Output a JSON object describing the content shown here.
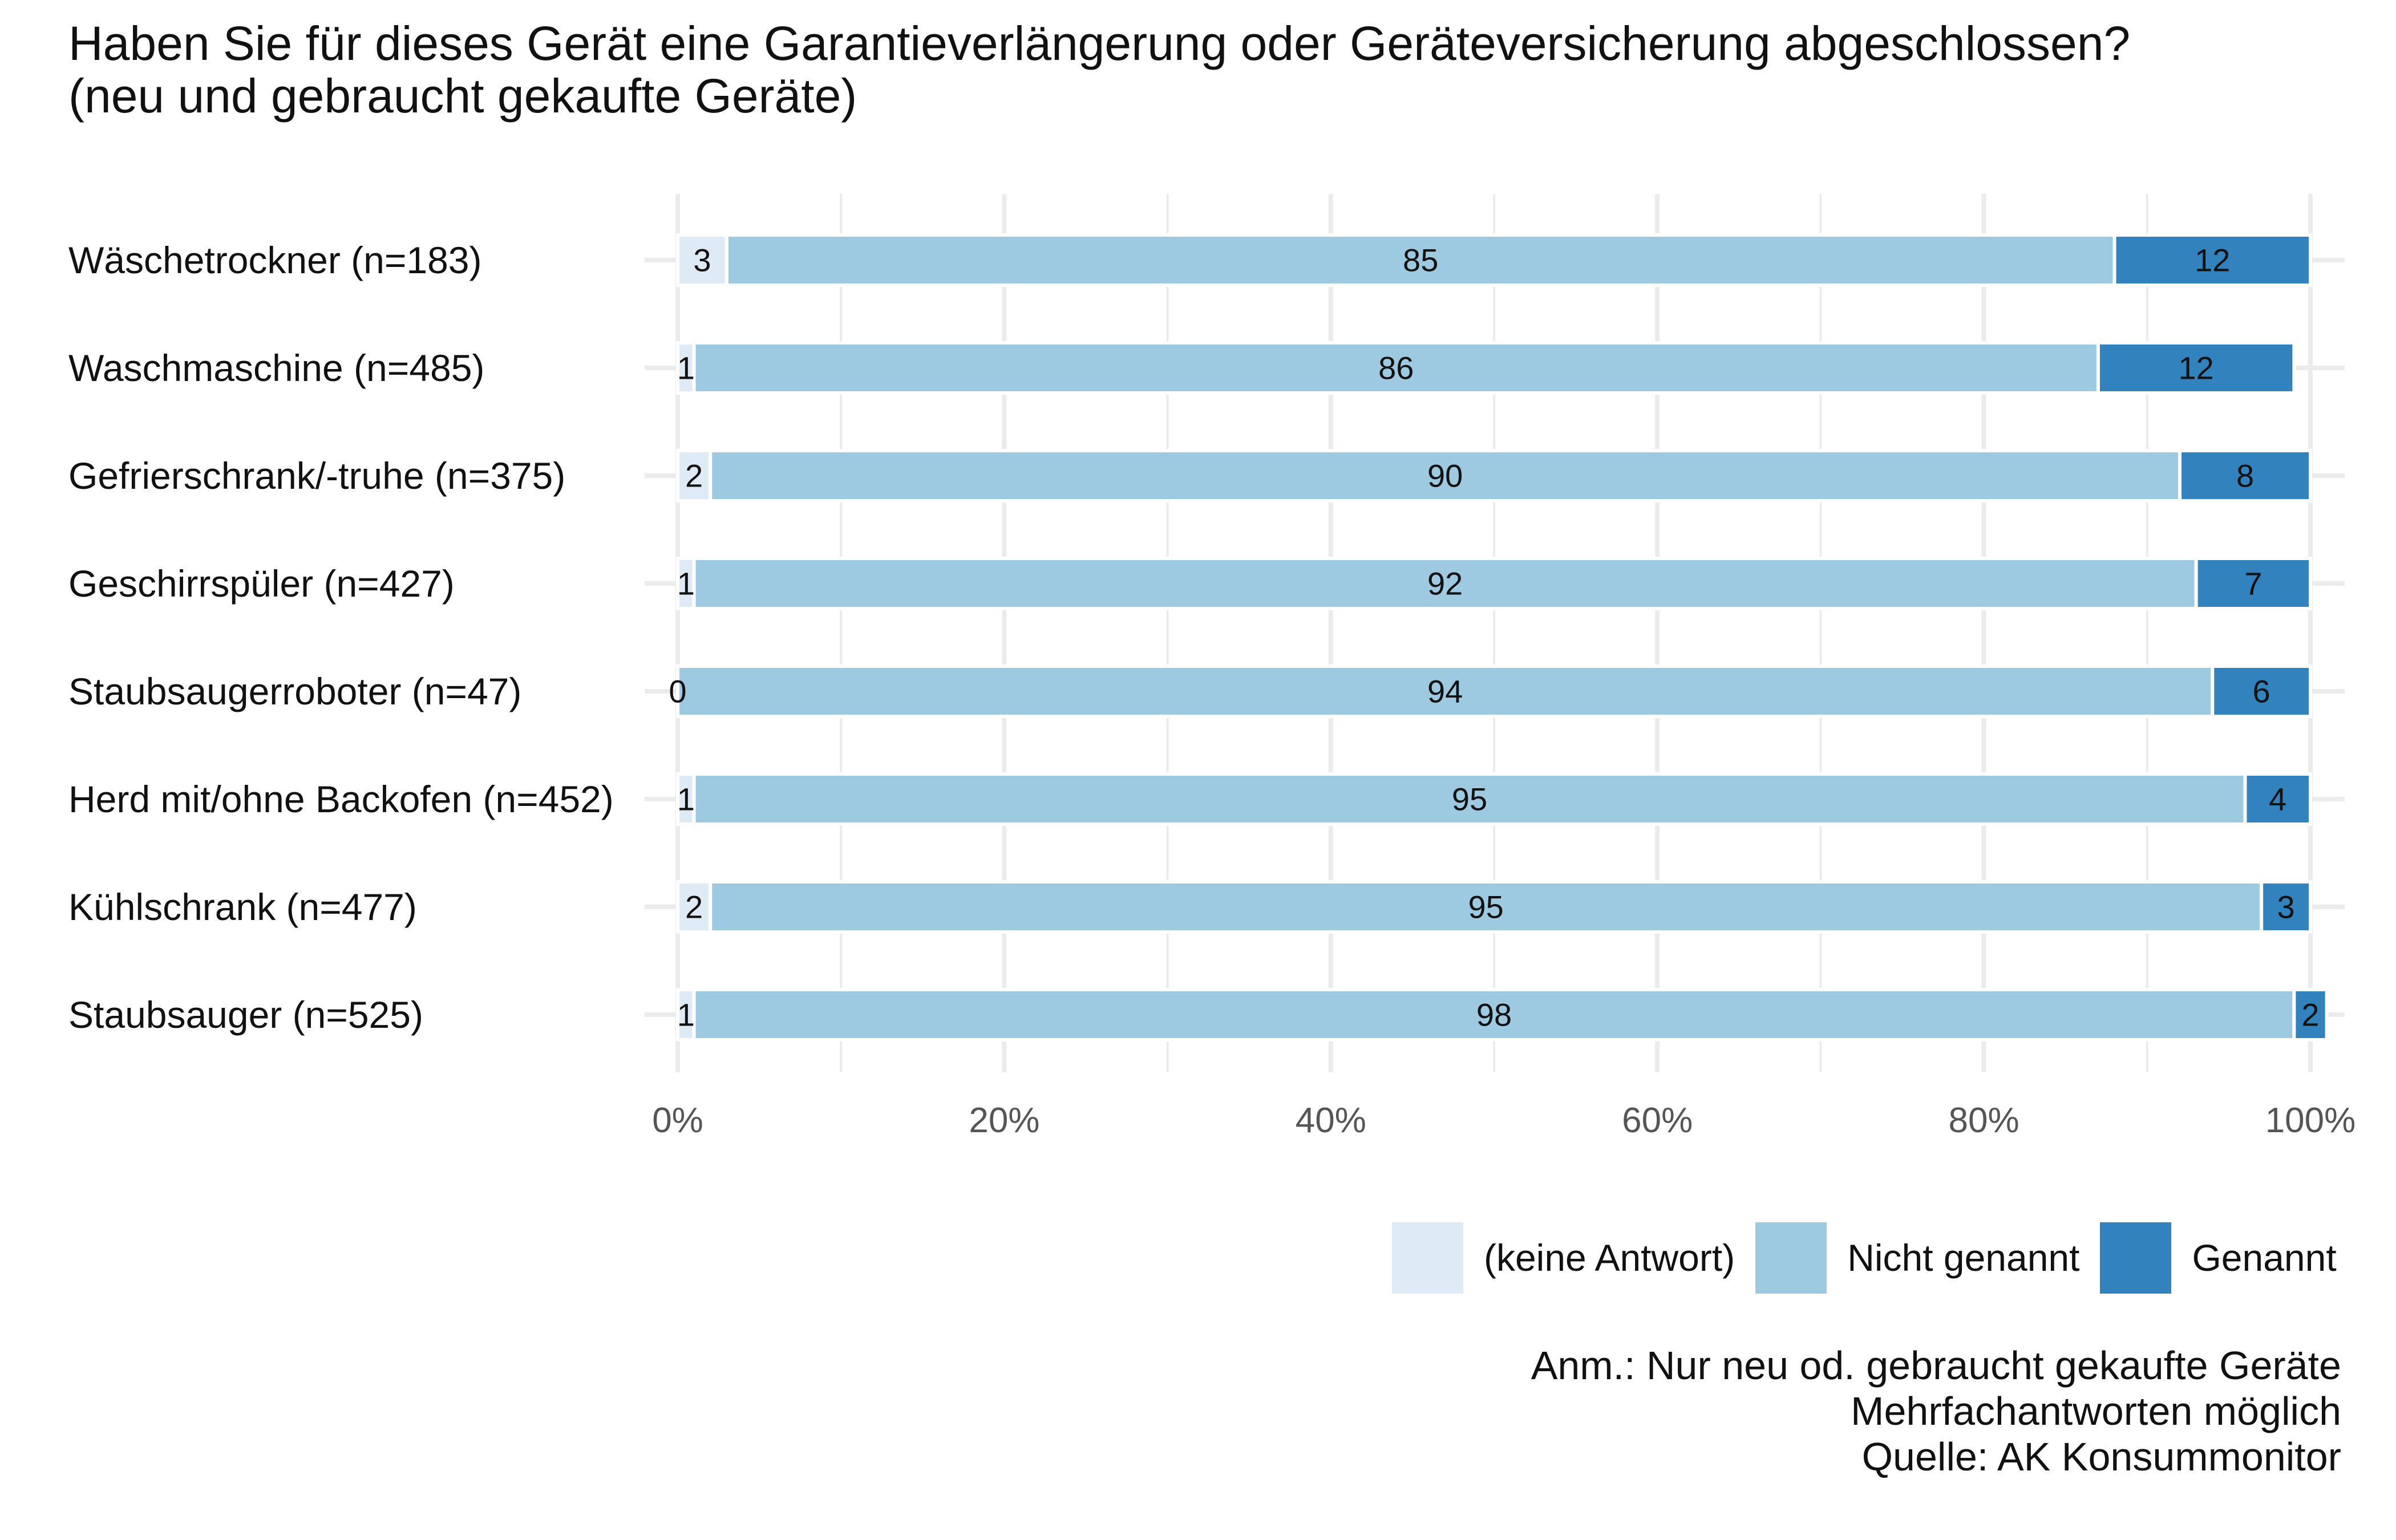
{
  "chart_data": {
    "type": "bar",
    "orientation": "horizontal",
    "stacked": true,
    "title": "Haben Sie für dieses Gerät eine Garantieverlängerung oder Geräteversicherung abgeschlossen?",
    "subtitle": "(neu und gebraucht gekaufte Geräte)",
    "categories": [
      "Wäschetrockner (n=183)",
      "Waschmaschine (n=485)",
      "Gefrierschrank/-truhe (n=375)",
      "Geschirrspüler (n=427)",
      "Staubsaugerroboter (n=47)",
      "Herd mit/ohne Backofen (n=452)",
      "Kühlschrank (n=477)",
      "Staubsauger (n=525)"
    ],
    "series": [
      {
        "name": "(keine Antwort)",
        "color": "#deebf7",
        "values": [
          3,
          1,
          2,
          1,
          0,
          1,
          2,
          1
        ]
      },
      {
        "name": "Nicht genannt",
        "color": "#9ecae1",
        "values": [
          85,
          86,
          90,
          92,
          94,
          95,
          95,
          98
        ]
      },
      {
        "name": "Genannt",
        "color": "#3182bd",
        "values": [
          12,
          12,
          8,
          7,
          6,
          4,
          3,
          2
        ]
      }
    ],
    "xlim": [
      0,
      100
    ],
    "x_ticks": [
      "0%",
      "20%",
      "40%",
      "60%",
      "80%",
      "100%"
    ],
    "grid": true,
    "legend_position": "bottom-right"
  },
  "notes": {
    "line1": "Anm.: Nur neu od. gebraucht gekaufte Geräte",
    "line2": "Mehrfachantworten möglich",
    "line3": "Quelle: AK Konsummonitor"
  }
}
